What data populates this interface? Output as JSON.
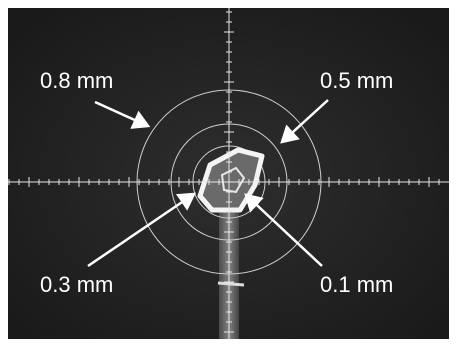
{
  "annotations": [
    {
      "text": "0.8 mm"
    },
    {
      "text": "0.5 mm"
    },
    {
      "text": "0.3 mm"
    },
    {
      "text": "0.1 mm"
    }
  ]
}
